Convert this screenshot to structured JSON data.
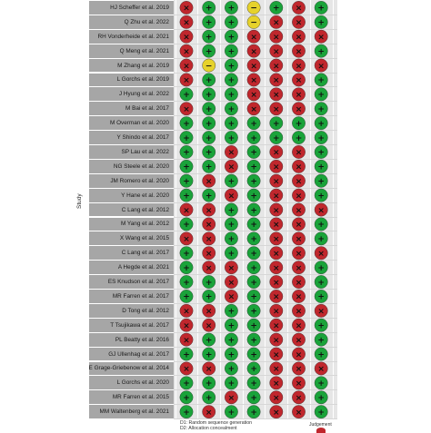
{
  "chart_data": {
    "type": "table",
    "ylabel": "Study",
    "judgement_legend_title": "Judgement",
    "domain_notes": [
      "D1: Random sequence generation",
      "D2: Allocation concealment"
    ],
    "colors": {
      "low": "#1aa33a",
      "some": "#e6d22b",
      "high": "#c0272d",
      "background": "#e6e6e6",
      "label_bg": "#a6a6a6"
    },
    "symbols": {
      "low": "+",
      "some": "−",
      "high": "×"
    },
    "studies": [
      "HJ Scheffer et al. 2019",
      "Q Zhu et al. 2022",
      "RH Vonderheide et al. 2021",
      "Q Meng et al. 2021",
      "M Zhang et al. 2019",
      "L Gorchs et al. 2019",
      "J Hyung et al. 2022",
      "M Bai et al. 2017",
      "M Overman et al. 2020",
      "Y Shindo et al. 2017",
      "SP Lau et al. 2022",
      "NG Steele et al. 2020",
      "JM Romero et al. 2020",
      "Y Hane et al. 2020",
      "C Lang et al. 2012",
      "M Yang et al. 2012",
      "X Wang et al. 2015",
      "C Lang et al. 2017",
      "A Hegde et al. 2021",
      "ES Knudson et al. 2017",
      "MR Farren et al. 2017",
      "D Tong et al. 2012",
      "T Tsujikawa et al. 2017",
      "PL Beatty et al. 2016",
      "GJ Ullenhag et al. 2017",
      "E Grage-Griebenow et al. 2014",
      "L Gorchs et al. 2020",
      "MR Farren et al. 2015",
      "MM Waltenberg et al. 2021"
    ],
    "judgements": [
      [
        "high",
        "low",
        "low",
        "some",
        "low",
        "high",
        "low"
      ],
      [
        "high",
        "low",
        "low",
        "some",
        "high",
        "high",
        "low"
      ],
      [
        "high",
        "low",
        "low",
        "high",
        "high",
        "high",
        "high"
      ],
      [
        "high",
        "low",
        "low",
        "high",
        "high",
        "high",
        "low"
      ],
      [
        "high",
        "some",
        "low",
        "high",
        "high",
        "high",
        "high"
      ],
      [
        "high",
        "low",
        "low",
        "high",
        "high",
        "high",
        "low"
      ],
      [
        "low",
        "low",
        "low",
        "high",
        "high",
        "high",
        "low"
      ],
      [
        "high",
        "low",
        "low",
        "high",
        "high",
        "high",
        "low"
      ],
      [
        "low",
        "low",
        "low",
        "low",
        "low",
        "low",
        "low"
      ],
      [
        "low",
        "low",
        "low",
        "low",
        "low",
        "low",
        "low"
      ],
      [
        "low",
        "low",
        "high",
        "low",
        "high",
        "high",
        "low"
      ],
      [
        "low",
        "low",
        "high",
        "low",
        "high",
        "high",
        "low"
      ],
      [
        "low",
        "high",
        "low",
        "low",
        "high",
        "high",
        "low"
      ],
      [
        "low",
        "low",
        "high",
        "low",
        "high",
        "high",
        "low"
      ],
      [
        "high",
        "high",
        "low",
        "low",
        "high",
        "high",
        "high"
      ],
      [
        "low",
        "high",
        "low",
        "low",
        "high",
        "high",
        "low"
      ],
      [
        "high",
        "high",
        "low",
        "low",
        "high",
        "high",
        "low"
      ],
      [
        "low",
        "high",
        "low",
        "low",
        "high",
        "high",
        "high"
      ],
      [
        "low",
        "high",
        "high",
        "low",
        "high",
        "high",
        "low"
      ],
      [
        "low",
        "low",
        "high",
        "low",
        "high",
        "high",
        "low"
      ],
      [
        "low",
        "low",
        "high",
        "low",
        "high",
        "high",
        "low"
      ],
      [
        "high",
        "high",
        "low",
        "low",
        "high",
        "high",
        "high"
      ],
      [
        "high",
        "high",
        "low",
        "low",
        "high",
        "high",
        "low"
      ],
      [
        "high",
        "low",
        "low",
        "low",
        "high",
        "high",
        "low"
      ],
      [
        "low",
        "low",
        "low",
        "low",
        "high",
        "high",
        "low"
      ],
      [
        "high",
        "high",
        "low",
        "low",
        "high",
        "high",
        "high"
      ],
      [
        "low",
        "low",
        "low",
        "low",
        "high",
        "high",
        "low"
      ],
      [
        "low",
        "low",
        "high",
        "low",
        "high",
        "high",
        "low"
      ],
      [
        "low",
        "high",
        "low",
        "low",
        "high",
        "high",
        "low"
      ]
    ]
  }
}
